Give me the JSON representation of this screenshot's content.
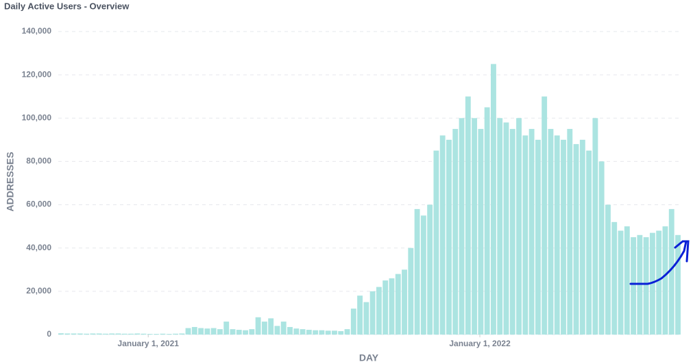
{
  "chart_data": {
    "type": "bar",
    "title": "Daily Active Users - Overview",
    "x_label": "DAY",
    "y_label": "ADDRESSES",
    "color": "#abe4e1",
    "grid": true,
    "xlim": [
      "2020-09-24",
      "2022-08-10"
    ],
    "xticks": [
      {
        "value": "2021-01-01",
        "label": "January 1, 2021"
      },
      {
        "value": "2022-01-01",
        "label": "January 1, 2022"
      }
    ],
    "ylim": [
      0,
      140000
    ],
    "yticks": [
      {
        "value": 0,
        "label": "0"
      },
      {
        "value": 20000,
        "label": "20,000"
      },
      {
        "value": 40000,
        "label": "40,000"
      },
      {
        "value": 60000,
        "label": "60,000"
      },
      {
        "value": 80000,
        "label": "80,000"
      },
      {
        "value": 100000,
        "label": "100,000"
      },
      {
        "value": 120000,
        "label": "120,000"
      },
      {
        "value": 140000,
        "label": "140,000"
      }
    ],
    "x": [
      "2020-09-27",
      "2020-10-04",
      "2020-10-11",
      "2020-10-18",
      "2020-10-25",
      "2020-11-01",
      "2020-11-08",
      "2020-11-15",
      "2020-11-22",
      "2020-11-29",
      "2020-12-06",
      "2020-12-13",
      "2020-12-20",
      "2020-12-27",
      "2021-01-03",
      "2021-01-10",
      "2021-01-17",
      "2021-01-24",
      "2021-01-31",
      "2021-02-07",
      "2021-02-14",
      "2021-02-21",
      "2021-02-28",
      "2021-03-07",
      "2021-03-14",
      "2021-03-21",
      "2021-03-28",
      "2021-04-04",
      "2021-04-11",
      "2021-04-18",
      "2021-04-25",
      "2021-05-02",
      "2021-05-09",
      "2021-05-16",
      "2021-05-23",
      "2021-05-30",
      "2021-06-06",
      "2021-06-13",
      "2021-06-20",
      "2021-06-27",
      "2021-07-04",
      "2021-07-11",
      "2021-07-18",
      "2021-07-25",
      "2021-08-01",
      "2021-08-08",
      "2021-08-15",
      "2021-08-22",
      "2021-08-29",
      "2021-09-05",
      "2021-09-12",
      "2021-09-19",
      "2021-09-26",
      "2021-10-03",
      "2021-10-10",
      "2021-10-17",
      "2021-10-24",
      "2021-10-31",
      "2021-11-07",
      "2021-11-14",
      "2021-11-21",
      "2021-11-28",
      "2021-12-05",
      "2021-12-12",
      "2021-12-19",
      "2021-12-26",
      "2022-01-02",
      "2022-01-09",
      "2022-01-16",
      "2022-01-23",
      "2022-01-30",
      "2022-02-06",
      "2022-02-13",
      "2022-02-20",
      "2022-02-27",
      "2022-03-06",
      "2022-03-13",
      "2022-03-20",
      "2022-03-27",
      "2022-04-03",
      "2022-04-10",
      "2022-04-17",
      "2022-04-24",
      "2022-05-01",
      "2022-05-08",
      "2022-05-15",
      "2022-05-22",
      "2022-05-29",
      "2022-06-05",
      "2022-06-12",
      "2022-06-19",
      "2022-06-26",
      "2022-07-03",
      "2022-07-10",
      "2022-07-17",
      "2022-07-24",
      "2022-07-31",
      "2022-08-07"
    ],
    "values": [
      600,
      500,
      500,
      500,
      400,
      500,
      500,
      400,
      500,
      500,
      400,
      400,
      500,
      400,
      300,
      300,
      400,
      300,
      400,
      500,
      3000,
      3500,
      3000,
      2800,
      3000,
      2500,
      6000,
      2500,
      2200,
      2000,
      2500,
      8000,
      6000,
      7500,
      4000,
      6000,
      3500,
      2800,
      2500,
      2200,
      2000,
      2000,
      1800,
      1800,
      1600,
      2500,
      12000,
      18000,
      15000,
      20000,
      22000,
      25000,
      26000,
      28000,
      30000,
      40000,
      58000,
      55000,
      60000,
      85000,
      92000,
      90000,
      95000,
      100000,
      110000,
      100000,
      95000,
      105000,
      125000,
      100000,
      98000,
      95000,
      100000,
      92000,
      95000,
      90000,
      110000,
      95000,
      92000,
      90000,
      95000,
      88000,
      90000,
      85000,
      100000,
      80000,
      60000,
      52000,
      48000,
      50000,
      45000,
      46000,
      45000,
      47000,
      48000,
      50000,
      58000,
      46000
    ]
  }
}
